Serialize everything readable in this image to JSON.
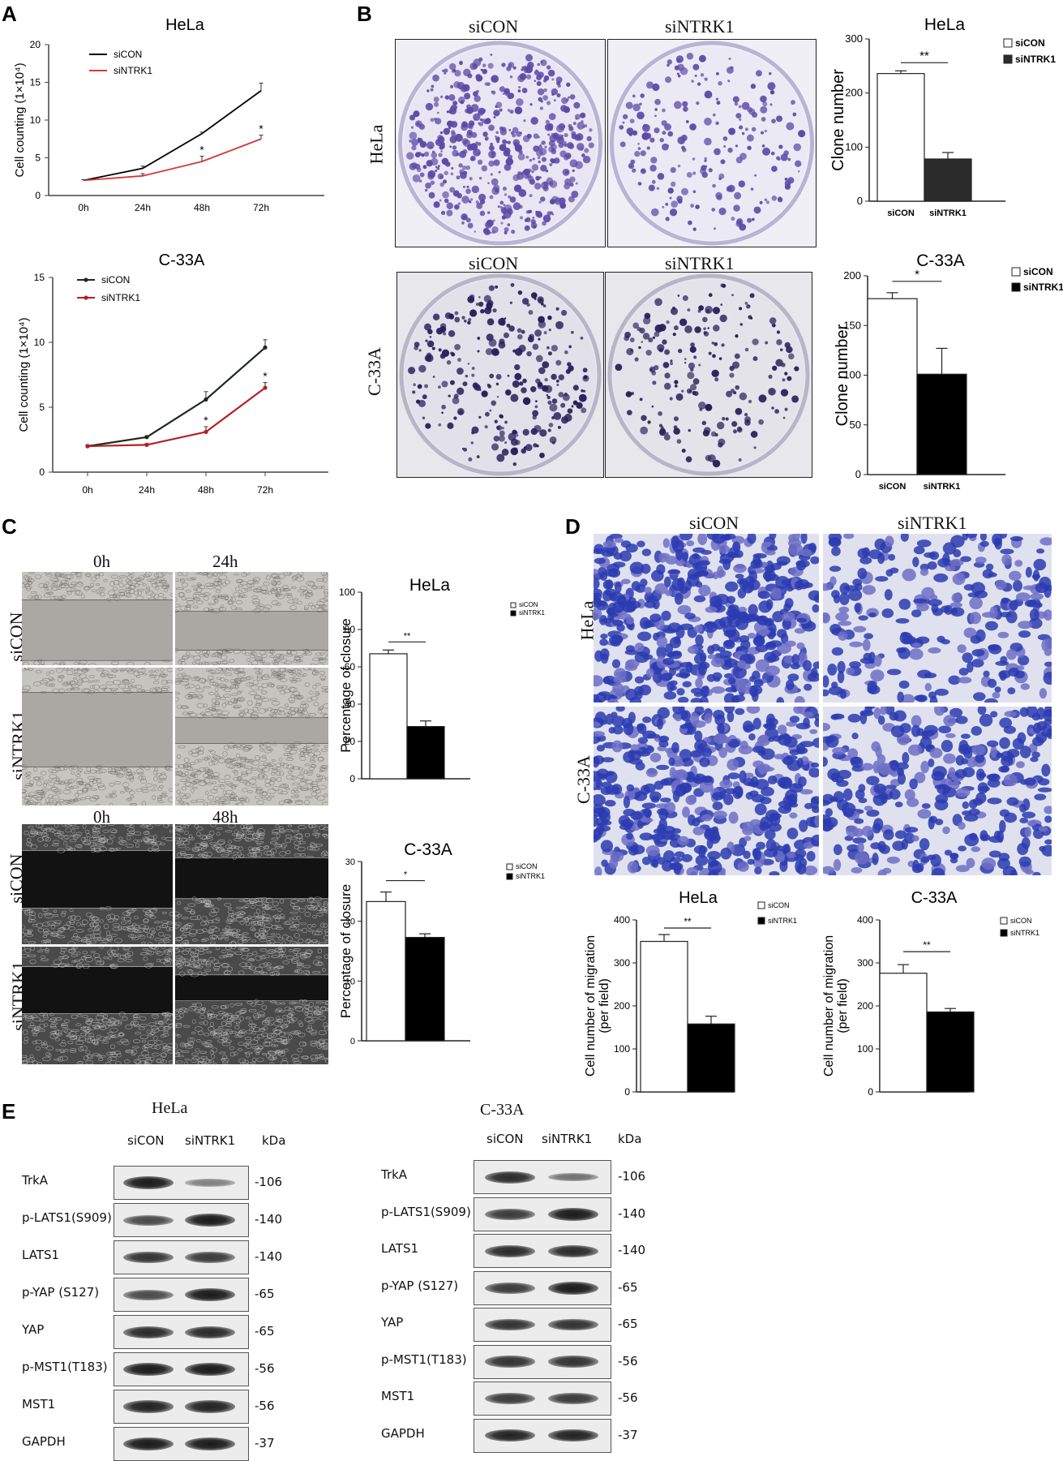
{
  "panels": {
    "A": "A",
    "B": "B",
    "C": "C",
    "D": "D",
    "E": "E"
  },
  "chart_data": [
    {
      "id": "A-HeLa",
      "type": "line",
      "title": "HeLa",
      "ylabel": "Cell counting (1×10⁴)",
      "categories": [
        "0h",
        "24h",
        "48h",
        "72h"
      ],
      "ylim": [
        0,
        20
      ],
      "yticks": [
        "0",
        "5",
        "10",
        "15",
        "20"
      ],
      "series": [
        {
          "name": "siCON",
          "color": "#000000",
          "values": [
            2.0,
            3.6,
            8.2,
            13.9
          ],
          "errors": [
            0.1,
            0.3,
            0.2,
            1.0
          ]
        },
        {
          "name": "siNTRK1",
          "color": "#d43a3a",
          "values": [
            2.0,
            2.6,
            4.5,
            7.5
          ],
          "errors": [
            0.1,
            0.3,
            0.7,
            0.5
          ]
        }
      ],
      "significance": [
        "",
        "",
        "*",
        "*"
      ]
    },
    {
      "id": "A-C33A",
      "type": "line",
      "title": "C-33A",
      "ylabel": "Cell counting (1×10⁴)",
      "categories": [
        "0h",
        "24h",
        "48h",
        "72h"
      ],
      "ylim": [
        0,
        15
      ],
      "yticks": [
        "0",
        "5",
        "10",
        "15"
      ],
      "series": [
        {
          "name": "siCON",
          "color": "#1a2a22",
          "values": [
            2.0,
            2.7,
            5.6,
            9.6
          ],
          "errors": [
            0.1,
            0.1,
            0.6,
            0.6
          ]
        },
        {
          "name": "siNTRK1",
          "color": "#b51f24",
          "values": [
            2.0,
            2.1,
            3.1,
            6.5
          ],
          "errors": [
            0.1,
            0.1,
            0.4,
            0.4
          ]
        }
      ],
      "significance": [
        "",
        "",
        "*",
        "*"
      ]
    },
    {
      "id": "B-HeLa",
      "type": "bar",
      "title": "HeLa",
      "ylabel": "Clone number",
      "categories": [
        "siCON",
        "siNTRK1"
      ],
      "ylim": [
        0,
        300
      ],
      "yticks": [
        "0",
        "100",
        "200",
        "300"
      ],
      "values": [
        236,
        78
      ],
      "errors": [
        5,
        12
      ],
      "fills": [
        "#ffffff",
        "#2b2b2b"
      ],
      "legend": [
        "siCON",
        "siNTRK1"
      ],
      "significance": "**"
    },
    {
      "id": "B-C33A",
      "type": "bar",
      "title": "C-33A",
      "ylabel": "Clone number",
      "categories": [
        "siCON",
        "siNTRK1"
      ],
      "ylim": [
        0,
        200
      ],
      "yticks": [
        "0",
        "50",
        "100",
        "150",
        "200"
      ],
      "values": [
        177,
        101
      ],
      "errors": [
        6,
        26
      ],
      "fills": [
        "#ffffff",
        "#000000"
      ],
      "legend": [
        "siCON",
        "siNTRK1"
      ],
      "significance": "*"
    },
    {
      "id": "C-HeLa",
      "type": "bar",
      "title": "HeLa",
      "ylabel": "Percentage of closure",
      "categories": [
        "",
        ""
      ],
      "ylim": [
        0,
        100
      ],
      "yticks": [
        "0",
        "20",
        "40",
        "60",
        "80",
        "100"
      ],
      "values": [
        67,
        28
      ],
      "errors": [
        2,
        3
      ],
      "fills": [
        "#ffffff",
        "#000000"
      ],
      "legend": [
        "siCON",
        "siNTRK1"
      ],
      "significance": "**"
    },
    {
      "id": "C-C33A",
      "type": "bar",
      "title": "C-33A",
      "ylabel": "Percentage of closure",
      "categories": [
        "",
        ""
      ],
      "ylim": [
        0,
        30
      ],
      "yticks": [
        "0",
        "10",
        "20",
        "30"
      ],
      "values": [
        23.3,
        17.3
      ],
      "errors": [
        1.6,
        0.6
      ],
      "fills": [
        "#ffffff",
        "#000000"
      ],
      "legend": [
        "siCON",
        "siNTRK1"
      ],
      "significance": "*"
    },
    {
      "id": "D-HeLa",
      "type": "bar",
      "title": "HeLa",
      "ylabel": "Cell number of migration (per field)",
      "categories": [
        "",
        ""
      ],
      "ylim": [
        0,
        400
      ],
      "yticks": [
        "0",
        "100",
        "200",
        "300",
        "400"
      ],
      "values": [
        350,
        158
      ],
      "errors": [
        16,
        18
      ],
      "fills": [
        "#ffffff",
        "#000000"
      ],
      "legend": [
        "siCON",
        "siNTRK1"
      ],
      "significance": "**"
    },
    {
      "id": "D-C33A",
      "type": "bar",
      "title": "C-33A",
      "ylabel": "Cell number of migration (per field)",
      "categories": [
        "",
        ""
      ],
      "ylim": [
        0,
        400
      ],
      "yticks": [
        "0",
        "100",
        "200",
        "300",
        "400"
      ],
      "values": [
        276,
        186
      ],
      "errors": [
        20,
        8
      ],
      "fills": [
        "#ffffff",
        "#000000"
      ],
      "legend": [
        "siCON",
        "siNTRK1"
      ],
      "significance": "**"
    }
  ],
  "panelB": {
    "col1": "siCON",
    "col2": "siNTRK1",
    "row1": "HeLa",
    "row2": "C-33A"
  },
  "panelC": {
    "time0": "0h",
    "time24": "24h",
    "time48": "48h",
    "siCON": "siCON",
    "siNTRK1": "siNTRK1"
  },
  "panelD": {
    "col1": "siCON",
    "col2": "siNTRK1",
    "row1": "HeLa",
    "row2": "C-33A"
  },
  "panelE": {
    "hela": {
      "title": "HeLa",
      "col1": "siCON",
      "col2": "siNTRK1",
      "kda": "kDa",
      "rows": [
        {
          "label": "TrkA",
          "kda": "-106",
          "s1": 1.0,
          "s2": 0.35
        },
        {
          "label": "p-LATS1(S909)",
          "kda": "-140",
          "s1": 0.7,
          "s2": 1.0
        },
        {
          "label": "LATS1",
          "kda": "-140",
          "s1": 0.85,
          "s2": 0.8
        },
        {
          "label": "p-YAP (S127)",
          "kda": "-65",
          "s1": 0.7,
          "s2": 1.0
        },
        {
          "label": "YAP",
          "kda": "-65",
          "s1": 0.9,
          "s2": 0.9
        },
        {
          "label": "p-MST1(T183)",
          "kda": "-56",
          "s1": 1.0,
          "s2": 1.0
        },
        {
          "label": "MST1",
          "kda": "-56",
          "s1": 0.95,
          "s2": 0.95
        },
        {
          "label": "GAPDH",
          "kda": "-37",
          "s1": 1.0,
          "s2": 1.0
        }
      ]
    },
    "c33a": {
      "title": "C-33A",
      "col1": "siCON",
      "col2": "siNTRK1",
      "kda": "kDa",
      "rows": [
        {
          "label": "TrkA",
          "kda": "-106",
          "s1": 0.9,
          "s2": 0.45
        },
        {
          "label": "p-LATS1(S909)",
          "kda": "-140",
          "s1": 0.8,
          "s2": 1.0
        },
        {
          "label": "LATS1",
          "kda": "-140",
          "s1": 0.9,
          "s2": 0.9
        },
        {
          "label": "p-YAP (S127)",
          "kda": "-65",
          "s1": 0.8,
          "s2": 1.0
        },
        {
          "label": "YAP",
          "kda": "-65",
          "s1": 0.85,
          "s2": 0.85
        },
        {
          "label": "p-MST1(T183)",
          "kda": "-56",
          "s1": 0.85,
          "s2": 0.85
        },
        {
          "label": "MST1",
          "kda": "-56",
          "s1": 0.8,
          "s2": 0.8
        },
        {
          "label": "GAPDH",
          "kda": "-37",
          "s1": 0.95,
          "s2": 0.95
        }
      ]
    }
  }
}
